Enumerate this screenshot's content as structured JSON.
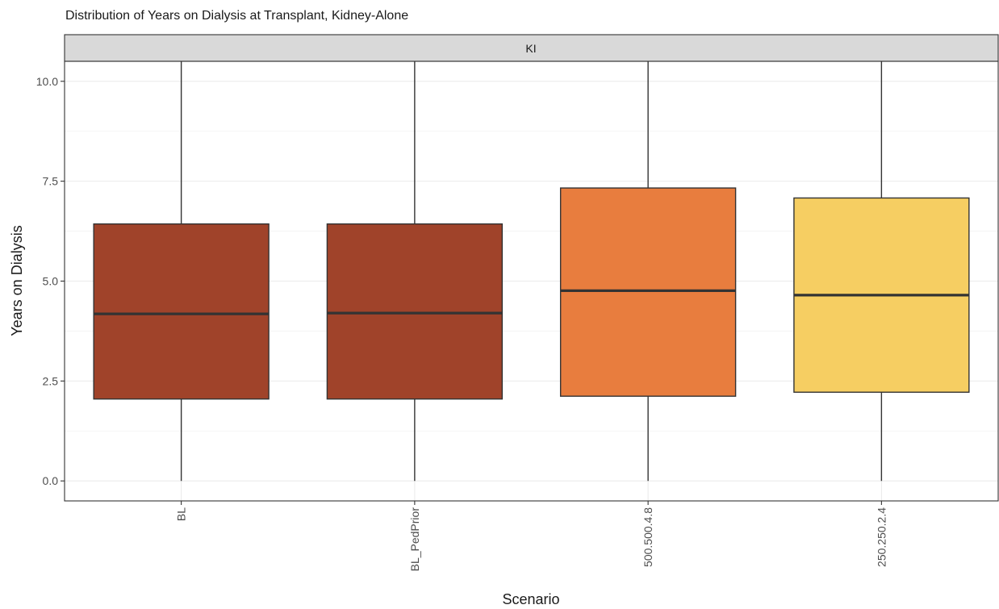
{
  "chart_data": {
    "type": "box",
    "title": "Distribution of Years on Dialysis at Transplant, Kidney-Alone",
    "facet_label": "KI",
    "xlabel": "Scenario",
    "ylabel": "Years on Dialysis",
    "ylim": [
      -0.5,
      10.5
    ],
    "yticks": [
      0.0,
      2.5,
      5.0,
      7.5,
      10.0
    ],
    "ytick_labels": [
      "0.0",
      "2.5",
      "5.0",
      "7.5",
      "10.0"
    ],
    "grid": true,
    "categories": [
      "BL",
      "BL_PedPrior",
      "500.500.4.8",
      "250.250.2.4"
    ],
    "boxes": [
      {
        "category": "BL",
        "whisker_low": 0.0,
        "q1": 2.05,
        "median": 4.18,
        "q3": 6.43,
        "whisker_high": 10.5,
        "color": "#A0432A"
      },
      {
        "category": "BL_PedPrior",
        "whisker_low": 0.0,
        "q1": 2.05,
        "median": 4.2,
        "q3": 6.43,
        "whisker_high": 10.5,
        "color": "#A0432A"
      },
      {
        "category": "500.500.4.8",
        "whisker_low": 0.0,
        "q1": 2.12,
        "median": 4.76,
        "q3": 7.33,
        "whisker_high": 10.5,
        "color": "#E87D3E"
      },
      {
        "category": "250.250.2.4",
        "whisker_low": 0.0,
        "q1": 2.22,
        "median": 4.65,
        "q3": 7.08,
        "whisker_high": 10.5,
        "color": "#F6CE62"
      }
    ]
  }
}
